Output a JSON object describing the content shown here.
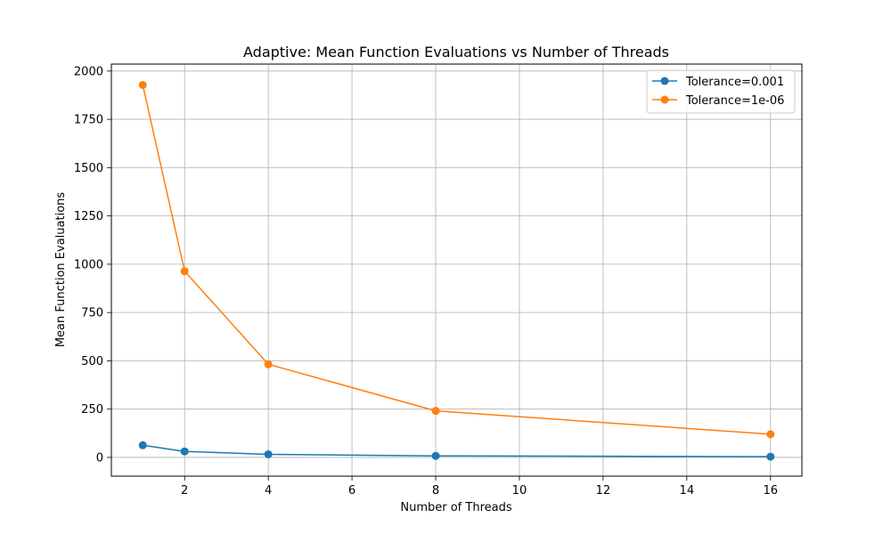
{
  "chart_data": {
    "type": "line",
    "title": "Adaptive: Mean Function Evaluations vs Number of Threads",
    "xlabel": "Number of Threads",
    "ylabel": "Mean Function Evaluations",
    "xlim": [
      0.25,
      16.75
    ],
    "ylim": [
      -97,
      2036
    ],
    "xticks": [
      2,
      4,
      6,
      8,
      10,
      12,
      14,
      16
    ],
    "yticks": [
      0,
      250,
      500,
      750,
      1000,
      1250,
      1500,
      1750,
      2000
    ],
    "grid": true,
    "legend_position": "top-right",
    "x": [
      1,
      2,
      4,
      8,
      16
    ],
    "series": [
      {
        "name": "Tolerance=0.001",
        "color": "#1f77b4",
        "marker": "circle",
        "values": [
          63,
          31,
          16,
          8,
          4
        ]
      },
      {
        "name": "Tolerance=1e-06",
        "color": "#ff7f0e",
        "marker": "circle",
        "values": [
          1928,
          964,
          482,
          241,
          120
        ]
      }
    ]
  }
}
